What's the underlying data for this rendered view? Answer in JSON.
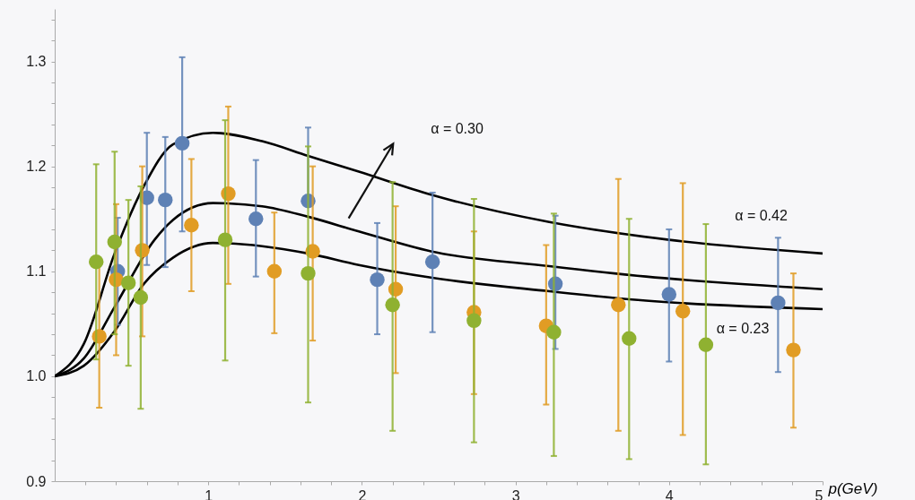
{
  "chart_data": {
    "type": "scatter",
    "xlabel": "p(GeV)",
    "marker": "circle",
    "grid": false,
    "xlim": [
      0,
      5
    ],
    "ylim": [
      0.9,
      1.35
    ],
    "xticks": [
      {
        "value": 0.2,
        "label": null
      },
      {
        "value": 0.4,
        "label": null
      },
      {
        "value": 0.6,
        "label": null
      },
      {
        "value": 0.8,
        "label": null
      },
      1,
      {
        "value": 1.2,
        "label": null
      },
      {
        "value": 1.4,
        "label": null
      },
      {
        "value": 1.6,
        "label": null
      },
      {
        "value": 1.8,
        "label": null
      },
      2,
      {
        "value": 2.2,
        "label": null
      },
      {
        "value": 2.4,
        "label": null
      },
      {
        "value": 2.6,
        "label": null
      },
      {
        "value": 2.8,
        "label": null
      },
      3,
      {
        "value": 3.2,
        "label": null
      },
      {
        "value": 3.4,
        "label": null
      },
      {
        "value": 3.6,
        "label": null
      },
      {
        "value": 3.8,
        "label": null
      },
      4,
      {
        "value": 4.2,
        "label": null
      },
      {
        "value": 4.4,
        "label": null
      },
      {
        "value": 4.6,
        "label": null
      },
      {
        "value": 4.8,
        "label": null
      },
      5
    ],
    "yticks": [
      0.9,
      {
        "value": 0.92,
        "label": null
      },
      {
        "value": 0.94,
        "label": null
      },
      {
        "value": 0.96,
        "label": null
      },
      {
        "value": 0.98,
        "label": null
      },
      {
        "value": 1,
        "label": "1.0"
      },
      {
        "value": 1.02,
        "label": null
      },
      {
        "value": 1.04,
        "label": null
      },
      {
        "value": 1.06,
        "label": null
      },
      {
        "value": 1.08,
        "label": null
      },
      1.1,
      {
        "value": 1.12,
        "label": null
      },
      {
        "value": 1.14,
        "label": null
      },
      {
        "value": 1.16,
        "label": null
      },
      {
        "value": 1.18,
        "label": null
      },
      1.2,
      {
        "value": 1.22,
        "label": null
      },
      {
        "value": 1.24,
        "label": null
      },
      {
        "value": 1.26,
        "label": null
      },
      {
        "value": 1.28,
        "label": null
      },
      1.3,
      {
        "value": 1.32,
        "label": null
      },
      {
        "value": 1.34,
        "label": null
      }
    ],
    "series": [
      {
        "type": "line",
        "marker": "none",
        "color": "#000000",
        "x": [
          0,
          0.19,
          0.39,
          0.58,
          0.77,
          1.03,
          1.35,
          1.65,
          1.98,
          2.45,
          3.22,
          4.0,
          5.0
        ],
        "values": [
          1.0,
          1.031,
          1.117,
          1.181,
          1.221,
          1.232,
          1.224,
          1.21,
          1.195,
          1.173,
          1.147,
          1.13,
          1.117
        ]
      },
      {
        "type": "line",
        "marker": "none",
        "color": "#000000",
        "x": [
          0,
          0.19,
          0.39,
          0.65,
          0.77,
          1.03,
          1.35,
          1.65,
          1.98,
          2.45,
          3.22,
          3.85,
          5.0
        ],
        "values": [
          1.0,
          1.017,
          1.066,
          1.13,
          1.149,
          1.165,
          1.162,
          1.152,
          1.138,
          1.119,
          1.105,
          1.095,
          1.083
        ]
      },
      {
        "type": "line",
        "marker": "none",
        "color": "#000000",
        "x": [
          0,
          0.19,
          0.39,
          0.58,
          0.77,
          1.03,
          1.35,
          1.65,
          1.98,
          2.45,
          3.22,
          3.85,
          5.0
        ],
        "values": [
          1.0,
          1.01,
          1.043,
          1.088,
          1.113,
          1.127,
          1.124,
          1.117,
          1.106,
          1.094,
          1.081,
          1.072,
          1.064
        ]
      },
      {
        "color": "#5e81b5",
        "x": [
          0.41,
          0.6,
          0.72,
          0.83,
          1.31,
          1.65,
          2.1,
          2.46,
          3.26,
          4.0,
          4.71
        ],
        "values": [
          1.1,
          1.17,
          1.168,
          1.222,
          1.15,
          1.167,
          1.092,
          1.109,
          1.088,
          1.078,
          1.07
        ],
        "errors": [
          [
            1.049,
            1.151
          ],
          [
            1.106,
            1.232
          ],
          [
            1.104,
            1.228
          ],
          [
            1.138,
            1.304
          ],
          [
            1.095,
            1.206
          ],
          [
            1.167,
            1.237
          ],
          [
            1.04,
            1.146
          ],
          [
            1.042,
            1.175
          ],
          [
            1.026,
            1.153
          ],
          [
            1.014,
            1.14
          ],
          [
            1.004,
            1.132
          ]
        ]
      },
      {
        "color": "#e19c24",
        "x": [
          0.29,
          0.4,
          0.57,
          0.89,
          1.13,
          1.43,
          1.68,
          2.22,
          2.73,
          3.2,
          3.67,
          4.09,
          4.81
        ],
        "values": [
          1.038,
          1.092,
          1.12,
          1.144,
          1.174,
          1.1,
          1.119,
          1.083,
          1.061,
          1.048,
          1.068,
          1.062,
          1.025
        ],
        "errors": [
          [
            0.97,
            1.107
          ],
          [
            1.02,
            1.164
          ],
          [
            1.038,
            1.2
          ],
          [
            1.081,
            1.207
          ],
          [
            1.088,
            1.257
          ],
          [
            1.041,
            1.156
          ],
          [
            1.034,
            1.2
          ],
          [
            1.003,
            1.162
          ],
          [
            0.983,
            1.138
          ],
          [
            0.973,
            1.125
          ],
          [
            0.948,
            1.188
          ],
          [
            0.944,
            1.184
          ],
          [
            0.951,
            1.098
          ]
        ]
      },
      {
        "color": "#8fb131",
        "x": [
          0.27,
          0.39,
          0.48,
          0.56,
          1.11,
          1.65,
          2.2,
          2.73,
          3.25,
          3.74,
          4.24
        ],
        "values": [
          1.109,
          1.128,
          1.089,
          1.075,
          1.13,
          1.098,
          1.068,
          1.053,
          1.042,
          1.036,
          1.03
        ],
        "errors": [
          [
            1.016,
            1.202
          ],
          [
            1.04,
            1.214
          ],
          [
            1.01,
            1.168
          ],
          [
            0.969,
            1.181
          ],
          [
            1.015,
            1.244
          ],
          [
            0.975,
            1.219
          ],
          [
            0.948,
            1.185
          ],
          [
            0.937,
            1.169
          ],
          [
            0.924,
            1.155
          ],
          [
            0.921,
            1.15
          ],
          [
            0.916,
            1.145
          ]
        ]
      }
    ],
    "annotations": [
      "α = 0.30",
      "α = 0.42",
      "α = 0.23"
    ]
  }
}
